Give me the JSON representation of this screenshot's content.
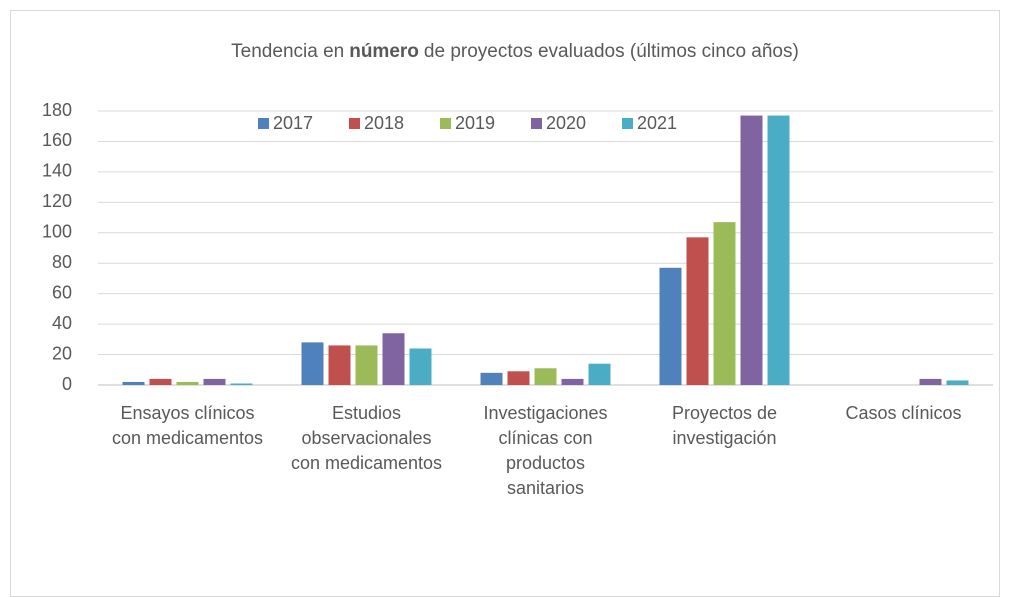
{
  "chart_data": {
    "type": "bar",
    "title": [
      "Tendencia en",
      "número",
      "de proyectos evaluados (últimos cinco años)"
    ],
    "categories": [
      "Ensayos clínicos con medicamentos",
      "Estudios observacionales con medicamentos",
      "Investigaciones clínicas con productos sanitarios",
      "Proyectos de investigación",
      "Casos clínicos"
    ],
    "series": [
      {
        "name": "2017",
        "color": "#4f81bd",
        "values": [
          2,
          28,
          8,
          77,
          0
        ]
      },
      {
        "name": "2018",
        "color": "#c0504d",
        "values": [
          4,
          26,
          9,
          97,
          0
        ]
      },
      {
        "name": "2019",
        "color": "#9bbb59",
        "values": [
          2,
          26,
          11,
          107,
          0
        ]
      },
      {
        "name": "2020",
        "color": "#8064a2",
        "values": [
          4,
          34,
          4,
          177,
          4
        ]
      },
      {
        "name": "2021",
        "color": "#4bacc6",
        "values": [
          1,
          24,
          14,
          177,
          3
        ]
      }
    ],
    "ylim": [
      0,
      180
    ],
    "yticks": [
      0,
      20,
      40,
      60,
      80,
      100,
      120,
      140,
      160,
      180
    ],
    "grid": true,
    "legend": "top"
  }
}
